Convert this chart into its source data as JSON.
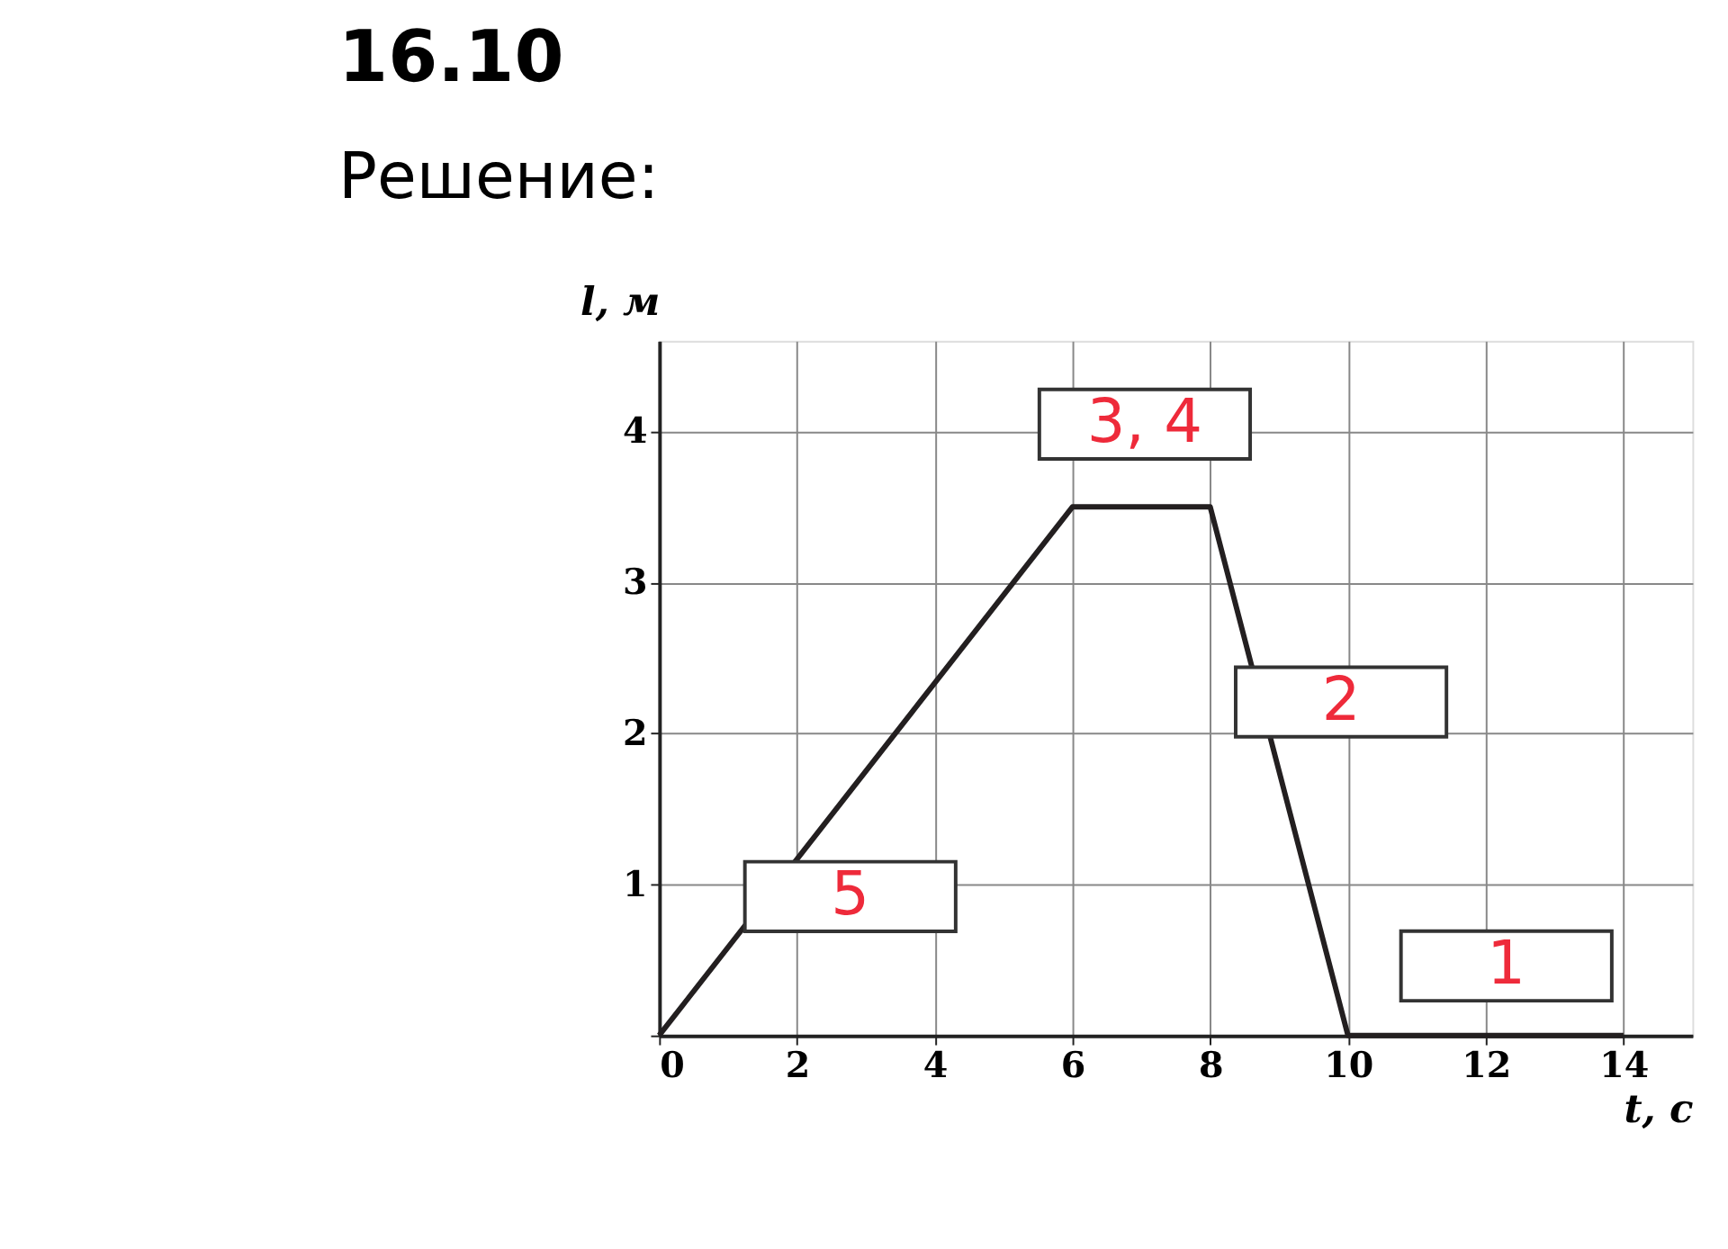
{
  "chart_data": {
    "type": "line",
    "title": "16.10",
    "subtitle": "Решение:",
    "xlabel": "t, с",
    "ylabel": "l, м",
    "x": [
      0,
      6,
      8,
      10,
      14
    ],
    "series": [
      {
        "color": "#231f20",
        "values": [
          0,
          3.5,
          3.5,
          0,
          0
        ]
      }
    ],
    "xlim": [
      0,
      15
    ],
    "ylim": [
      0,
      4.6
    ],
    "xticks": [
      0,
      2,
      4,
      6,
      8,
      10,
      12,
      14
    ],
    "yticks": [
      {
        "value": 0,
        "label": null
      },
      1,
      2,
      3,
      4
    ],
    "grid": true,
    "marker": "none",
    "line_style": "solid",
    "annotations": [
      "5",
      "3, 4",
      "2",
      "1"
    ]
  }
}
